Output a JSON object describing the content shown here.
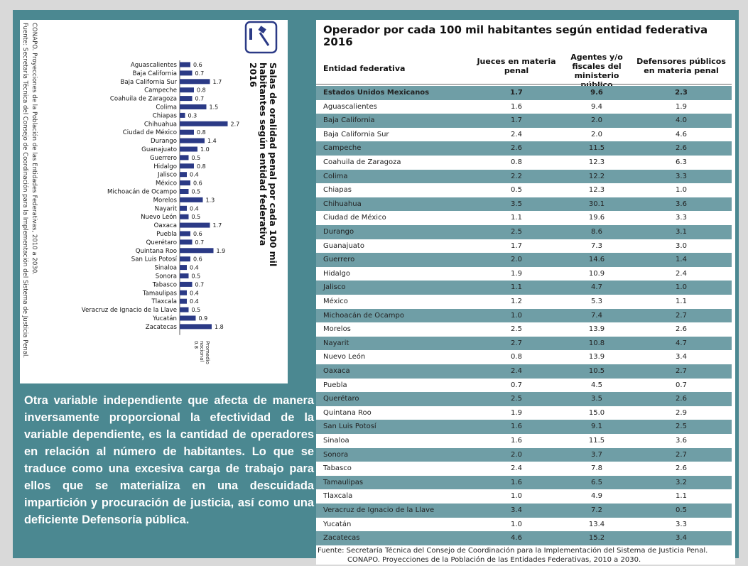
{
  "chart_data": {
    "type": "bar",
    "title_lines": [
      "Salas de oralidad penal por cada 100 mil",
      "habitantes según entidad federativa",
      "2016"
    ],
    "source_lines": [
      "Fuente: Secretaría Técnica del Consejo de Coordinación para la Implementación del Sistema de Justicia Penal.",
      "CONAPO. Proyecciones de la Población de las Entidades Federativas, 2010 a 2030."
    ],
    "annotation_lines": [
      "Promedio",
      "nacional",
      "0.8"
    ],
    "categories": [
      "Aguascalientes",
      "Baja California",
      "Baja California Sur",
      "Campeche",
      "Coahuila de Zaragoza",
      "Colima",
      "Chiapas",
      "Chihuahua",
      "Ciudad de México",
      "Durango",
      "Guanajuato",
      "Guerrero",
      "Hidalgo",
      "Jalisco",
      "México",
      "Michoacán de Ocampo",
      "Morelos",
      "Nayarit",
      "Nuevo León",
      "Oaxaca",
      "Puebla",
      "Querétaro",
      "Quintana Roo",
      "San Luis Potosí",
      "Sinaloa",
      "Sonora",
      "Tabasco",
      "Tamaulipas",
      "Tlaxcala",
      "Veracruz de Ignacio de la Llave",
      "Yucatán",
      "Zacatecas"
    ],
    "values": [
      0.6,
      0.7,
      1.7,
      0.8,
      0.7,
      1.5,
      0.3,
      2.7,
      0.8,
      1.4,
      1.0,
      0.5,
      0.8,
      0.4,
      0.6,
      0.5,
      1.3,
      0.4,
      0.5,
      1.7,
      0.6,
      0.7,
      1.9,
      0.6,
      0.4,
      0.5,
      0.7,
      0.4,
      0.4,
      0.5,
      0.9,
      1.8
    ],
    "value_labels": [
      "0.6",
      "0.7",
      "1.7",
      "0.8",
      "0.7",
      "1.5",
      "0.3",
      "2.7",
      "0.8",
      "1.4",
      "1.0",
      "0.5",
      "0.8",
      "0.4",
      "0.6",
      "0.5",
      "1.3",
      "0.4",
      "0.5",
      "1.7",
      "0.6",
      "0.7",
      "1.9",
      "0.6",
      "0.4",
      "0.5",
      "0.7",
      "0.4",
      "0.4",
      "0.5",
      "0.9",
      "1.8"
    ],
    "color": "#2b3a86",
    "xlim": [
      0,
      3
    ]
  },
  "paragraph": "Otra variable independiente que afecta de manera inversamente proporcional la efectividad de la variable dependiente, es la cantidad de operadores en relación al número de habitantes. Lo que se traduce como una excesiva carga de trabajo para ellos que se materializa en una descuidada impartición y procuración de justicia, así como una deficiente Defensoría pública.",
  "table": {
    "title_lines": [
      "Operador por cada 100 mil habitantes según entidad federativa",
      "2016"
    ],
    "header": [
      "Entidad federativa",
      "Jueces en materia penal",
      "Agentes y/o fiscales del ministerio público",
      "Defensores públicos en materia penal"
    ],
    "rows": [
      [
        "Estados Unidos Mexicanos",
        "1.7",
        "9.6",
        "2.3"
      ],
      [
        "Aguascalientes",
        "1.6",
        "9.4",
        "1.9"
      ],
      [
        "Baja California",
        "1.7",
        "2.0",
        "4.0"
      ],
      [
        "Baja California Sur",
        "2.4",
        "2.0",
        "4.6"
      ],
      [
        "Campeche",
        "2.6",
        "11.5",
        "2.6"
      ],
      [
        "Coahuila de Zaragoza",
        "0.8",
        "12.3",
        "6.3"
      ],
      [
        "Colima",
        "2.2",
        "12.2",
        "3.3"
      ],
      [
        "Chiapas",
        "0.5",
        "12.3",
        "1.0"
      ],
      [
        "Chihuahua",
        "3.5",
        "30.1",
        "3.6"
      ],
      [
        "Ciudad de México",
        "1.1",
        "19.6",
        "3.3"
      ],
      [
        "Durango",
        "2.5",
        "8.6",
        "3.1"
      ],
      [
        "Guanajuato",
        "1.7",
        "7.3",
        "3.0"
      ],
      [
        "Guerrero",
        "2.0",
        "14.6",
        "1.4"
      ],
      [
        "Hidalgo",
        "1.9",
        "10.9",
        "2.4"
      ],
      [
        "Jalisco",
        "1.1",
        "4.7",
        "1.0"
      ],
      [
        "México",
        "1.2",
        "5.3",
        "1.1"
      ],
      [
        "Michoacán de Ocampo",
        "1.0",
        "7.4",
        "2.7"
      ],
      [
        "Morelos",
        "2.5",
        "13.9",
        "2.6"
      ],
      [
        "Nayarit",
        "2.7",
        "10.8",
        "4.7"
      ],
      [
        "Nuevo León",
        "0.8",
        "13.9",
        "3.4"
      ],
      [
        "Oaxaca",
        "2.4",
        "10.5",
        "2.7"
      ],
      [
        "Puebla",
        "0.7",
        "4.5",
        "0.7"
      ],
      [
        "Querétaro",
        "2.5",
        "3.5",
        "2.6"
      ],
      [
        "Quintana Roo",
        "1.9",
        "15.0",
        "2.9"
      ],
      [
        "San Luis Potosí",
        "1.6",
        "9.1",
        "2.5"
      ],
      [
        "Sinaloa",
        "1.6",
        "11.5",
        "3.6"
      ],
      [
        "Sonora",
        "2.0",
        "3.7",
        "2.7"
      ],
      [
        "Tabasco",
        "2.4",
        "7.8",
        "2.6"
      ],
      [
        "Tamaulipas",
        "1.6",
        "6.5",
        "3.2"
      ],
      [
        "Tlaxcala",
        "1.0",
        "4.9",
        "1.1"
      ],
      [
        "Veracruz de Ignacio de la Llave",
        "3.4",
        "7.2",
        "0.5"
      ],
      [
        "Yucatán",
        "1.0",
        "13.4",
        "3.3"
      ],
      [
        "Zacatecas",
        "4.6",
        "15.2",
        "3.4"
      ]
    ],
    "source_lines": [
      "Fuente: Secretaría Técnica del Consejo de Coordinación para la Implementación del Sistema de Justicia Penal.",
      "CONAPO. Proyecciones de la Población de las Entidades Federativas, 2010 a 2030."
    ]
  }
}
